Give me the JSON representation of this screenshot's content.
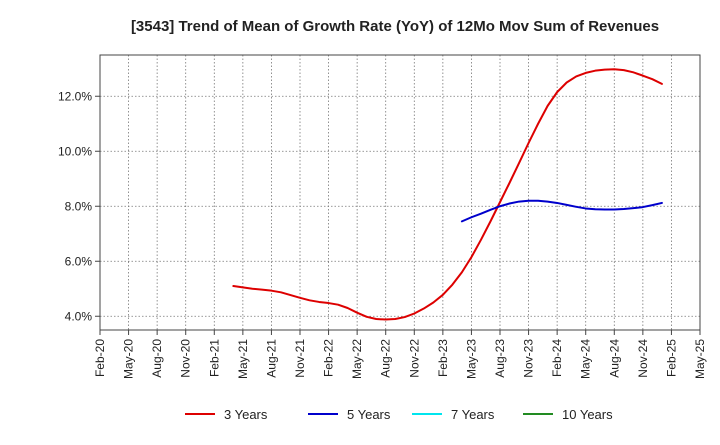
{
  "chart_data": {
    "type": "line",
    "title": "[3543]  Trend of Mean of Growth Rate (YoY) of 12Mo Mov Sum of Revenues",
    "xlabel": "",
    "ylabel": "",
    "x_ticks": [
      "Feb-20",
      "May-20",
      "Aug-20",
      "Nov-20",
      "Feb-21",
      "May-21",
      "Aug-21",
      "Nov-21",
      "Feb-22",
      "May-22",
      "Aug-22",
      "Nov-22",
      "Feb-23",
      "May-23",
      "Aug-23",
      "Nov-23",
      "Feb-24",
      "May-24",
      "Aug-24",
      "Nov-24",
      "Feb-25",
      "May-25"
    ],
    "y_ticks": [
      4.0,
      6.0,
      8.0,
      10.0,
      12.0
    ],
    "y_tick_labels": [
      "4.0%",
      "6.0%",
      "8.0%",
      "10.0%",
      "12.0%"
    ],
    "ylim": [
      3.5,
      13.5
    ],
    "grid": true,
    "legend_position": "bottom",
    "series": [
      {
        "name": "3 Years",
        "color": "#dd0000",
        "points": [
          [
            "Apr-21",
            5.1
          ],
          [
            "May-21",
            5.05
          ],
          [
            "Jun-21",
            5.0
          ],
          [
            "Jul-21",
            4.97
          ],
          [
            "Aug-21",
            4.93
          ],
          [
            "Sep-21",
            4.87
          ],
          [
            "Oct-21",
            4.77
          ],
          [
            "Nov-21",
            4.67
          ],
          [
            "Dec-21",
            4.58
          ],
          [
            "Jan-22",
            4.52
          ],
          [
            "Feb-22",
            4.48
          ],
          [
            "Mar-22",
            4.42
          ],
          [
            "Apr-22",
            4.3
          ],
          [
            "May-22",
            4.13
          ],
          [
            "Jun-22",
            3.98
          ],
          [
            "Jul-22",
            3.9
          ],
          [
            "Aug-22",
            3.88
          ],
          [
            "Sep-22",
            3.9
          ],
          [
            "Oct-22",
            3.97
          ],
          [
            "Nov-22",
            4.1
          ],
          [
            "Dec-22",
            4.28
          ],
          [
            "Jan-23",
            4.5
          ],
          [
            "Feb-23",
            4.78
          ],
          [
            "Mar-23",
            5.15
          ],
          [
            "Apr-23",
            5.6
          ],
          [
            "May-23",
            6.15
          ],
          [
            "Jun-23",
            6.78
          ],
          [
            "Jul-23",
            7.45
          ],
          [
            "Aug-23",
            8.15
          ],
          [
            "Sep-23",
            8.85
          ],
          [
            "Oct-23",
            9.57
          ],
          [
            "Nov-23",
            10.3
          ],
          [
            "Dec-23",
            11.0
          ],
          [
            "Jan-24",
            11.65
          ],
          [
            "Feb-24",
            12.15
          ],
          [
            "Mar-24",
            12.5
          ],
          [
            "Apr-24",
            12.72
          ],
          [
            "May-24",
            12.85
          ],
          [
            "Jun-24",
            12.93
          ],
          [
            "Jul-24",
            12.97
          ],
          [
            "Aug-24",
            12.98
          ],
          [
            "Sep-24",
            12.95
          ],
          [
            "Oct-24",
            12.87
          ],
          [
            "Nov-24",
            12.75
          ],
          [
            "Dec-24",
            12.62
          ],
          [
            "Jan-25",
            12.45
          ]
        ]
      },
      {
        "name": "5 Years",
        "color": "#0000cc",
        "points": [
          [
            "Apr-23",
            7.45
          ],
          [
            "May-23",
            7.6
          ],
          [
            "Jun-23",
            7.73
          ],
          [
            "Jul-23",
            7.87
          ],
          [
            "Aug-23",
            8.0
          ],
          [
            "Sep-23",
            8.1
          ],
          [
            "Oct-23",
            8.17
          ],
          [
            "Nov-23",
            8.2
          ],
          [
            "Dec-23",
            8.2
          ],
          [
            "Jan-24",
            8.17
          ],
          [
            "Feb-24",
            8.12
          ],
          [
            "Mar-24",
            8.05
          ],
          [
            "Apr-24",
            7.98
          ],
          [
            "May-24",
            7.92
          ],
          [
            "Jun-24",
            7.89
          ],
          [
            "Jul-24",
            7.88
          ],
          [
            "Aug-24",
            7.88
          ],
          [
            "Sep-24",
            7.9
          ],
          [
            "Oct-24",
            7.93
          ],
          [
            "Nov-24",
            7.97
          ],
          [
            "Dec-24",
            8.04
          ],
          [
            "Jan-25",
            8.12
          ]
        ]
      },
      {
        "name": "7 Years",
        "color": "#00e5ee",
        "points": []
      },
      {
        "name": "10 Years",
        "color": "#228b22",
        "points": []
      }
    ]
  }
}
